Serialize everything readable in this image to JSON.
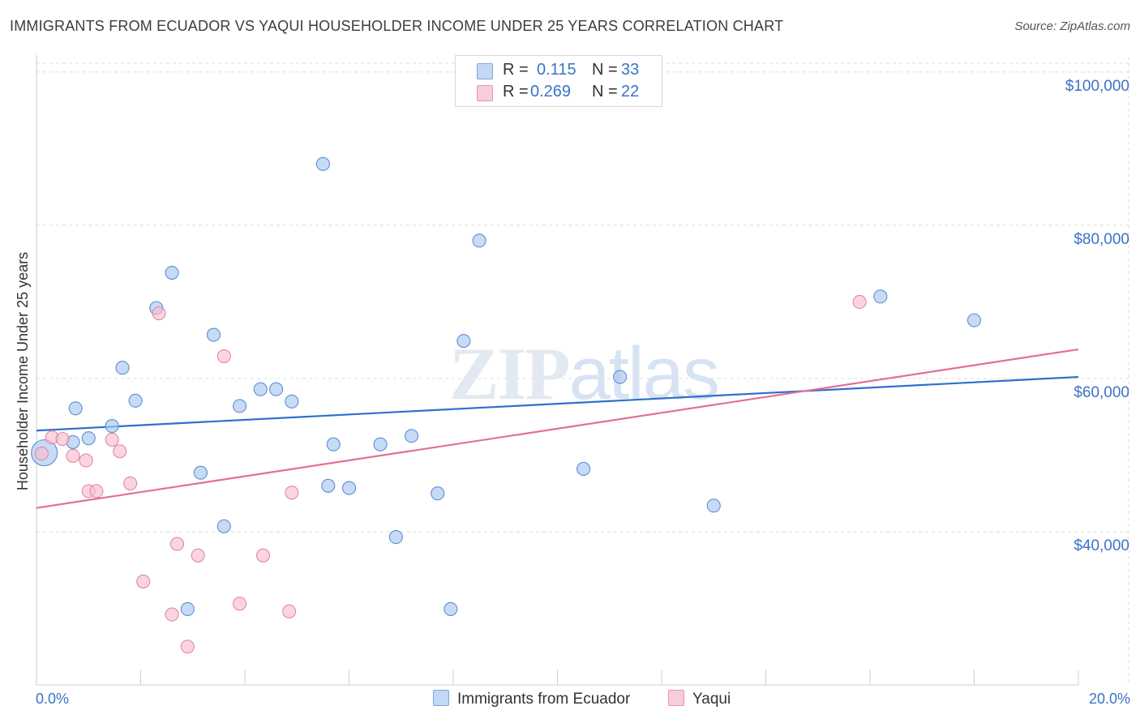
{
  "title": "IMMIGRANTS FROM ECUADOR VS YAQUI HOUSEHOLDER INCOME UNDER 25 YEARS CORRELATION CHART",
  "source": "Source: ZipAtlas.com",
  "watermark": "ZIPatlas",
  "legend_top": [
    {
      "r_label": "R =",
      "r_value": "0.115",
      "n_label": "N =",
      "n_value": "33"
    },
    {
      "r_label": "R =",
      "r_value": "0.269",
      "n_label": "N =",
      "n_value": "22"
    }
  ],
  "chart_data": {
    "type": "scatter",
    "title": "IMMIGRANTS FROM ECUADOR VS YAQUI HOUSEHOLDER INCOME UNDER 25 YEARS CORRELATION CHART",
    "xlabel": "",
    "ylabel": "Householder Income Under 25 years",
    "xlim": [
      0,
      20
    ],
    "ylim": [
      20000,
      102000
    ],
    "x_tick_labels": [
      "0.0%",
      "20.0%"
    ],
    "y_tick_labels": [
      "$100,000",
      "$80,000",
      "$60,000",
      "$40,000"
    ],
    "y_tick_values": [
      100000,
      80000,
      60000,
      40000
    ],
    "grid": true,
    "series": [
      {
        "name": "Immigrants from Ecuador",
        "color": "#a9c8f0",
        "stroke": "#5b8fd6",
        "line_color": "#2f6fcc",
        "trend": {
          "x0": 0,
          "y0": 53200,
          "x1": 20,
          "y1": 60200
        },
        "points": [
          [
            0.15,
            50300
          ],
          [
            0.7,
            51700
          ],
          [
            0.75,
            56100
          ],
          [
            1.0,
            52200
          ],
          [
            1.45,
            53800
          ],
          [
            1.65,
            61400
          ],
          [
            1.9,
            57100
          ],
          [
            2.3,
            69200
          ],
          [
            2.6,
            73800
          ],
          [
            2.9,
            29900
          ],
          [
            3.15,
            47700
          ],
          [
            3.4,
            65700
          ],
          [
            3.6,
            40700
          ],
          [
            3.9,
            56400
          ],
          [
            4.3,
            58600
          ],
          [
            4.6,
            58600
          ],
          [
            4.9,
            57000
          ],
          [
            5.5,
            88000
          ],
          [
            5.6,
            46000
          ],
          [
            5.7,
            51400
          ],
          [
            6.0,
            45700
          ],
          [
            6.6,
            51400
          ],
          [
            6.9,
            39300
          ],
          [
            7.2,
            52500
          ],
          [
            7.7,
            45000
          ],
          [
            7.95,
            29900
          ],
          [
            8.2,
            64900
          ],
          [
            8.5,
            78000
          ],
          [
            10.5,
            48200
          ],
          [
            11.2,
            60200
          ],
          [
            13.0,
            43400
          ],
          [
            16.2,
            70700
          ],
          [
            18.0,
            67600
          ]
        ]
      },
      {
        "name": "Yaqui",
        "color": "#f7bfd0",
        "stroke": "#e486a4",
        "line_color": "#e36f97",
        "trend": {
          "x0": 0,
          "y0": 43100,
          "x1": 20,
          "y1": 63800
        },
        "points": [
          [
            0.1,
            50200
          ],
          [
            0.3,
            52300
          ],
          [
            0.5,
            52100
          ],
          [
            0.7,
            49900
          ],
          [
            0.95,
            49300
          ],
          [
            1.0,
            45300
          ],
          [
            1.15,
            45300
          ],
          [
            1.45,
            52000
          ],
          [
            1.6,
            50500
          ],
          [
            1.8,
            46300
          ],
          [
            2.05,
            33500
          ],
          [
            2.35,
            68500
          ],
          [
            2.6,
            29200
          ],
          [
            2.7,
            38400
          ],
          [
            2.9,
            25000
          ],
          [
            3.1,
            36900
          ],
          [
            3.6,
            62900
          ],
          [
            3.9,
            30600
          ],
          [
            4.35,
            36900
          ],
          [
            4.85,
            29600
          ],
          [
            4.9,
            45100
          ],
          [
            15.8,
            70000
          ]
        ]
      }
    ]
  },
  "legend_bottom": [
    "Immigrants from Ecuador",
    "Yaqui"
  ]
}
